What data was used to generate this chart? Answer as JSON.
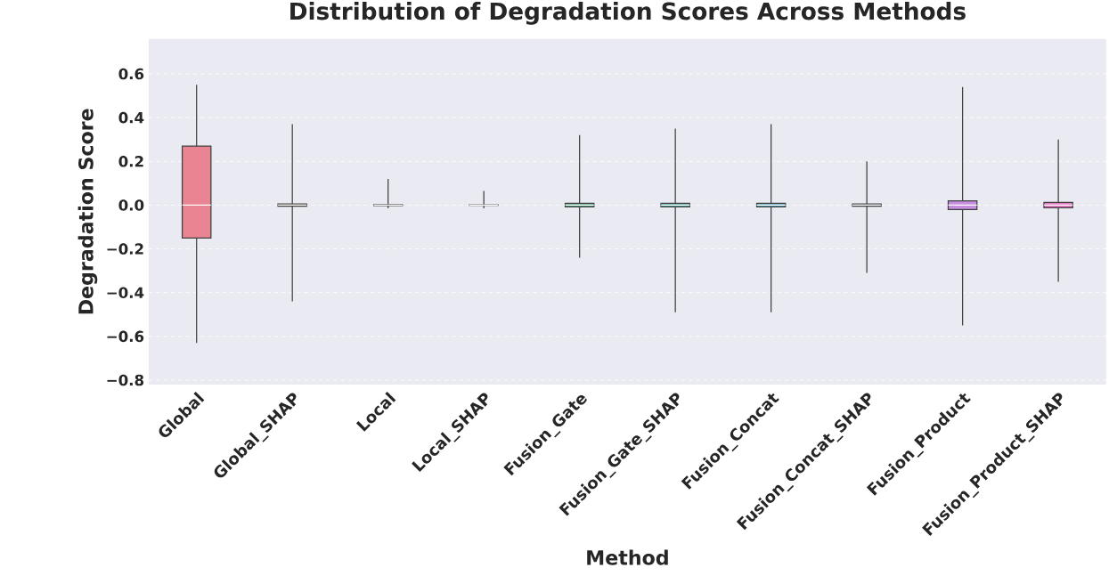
{
  "chart_data": {
    "type": "box",
    "title": "Distribution of Degradation Scores Across Methods",
    "xlabel": "Method",
    "ylabel": "Degradation Score",
    "categories": [
      "Global",
      "Global_SHAP",
      "Local",
      "Local_SHAP",
      "Fusion_Gate",
      "Fusion_Gate_SHAP",
      "Fusion_Concat",
      "Fusion_Concat_SHAP",
      "Fusion_Product",
      "Fusion_Product_SHAP"
    ],
    "colors": [
      "#e98592",
      "#c88a49",
      "#a59d50",
      "#7ea650",
      "#4aa57b",
      "#4ba39f",
      "#4ea1b8",
      "#7f9ee0",
      "#c68de0",
      "#e078c4"
    ],
    "boxes": [
      {
        "low": -0.63,
        "q1": -0.15,
        "median": 0.0,
        "q3": 0.27,
        "high": 0.55
      },
      {
        "low": -0.44,
        "q1": -0.005,
        "median": 0.0,
        "q3": 0.005,
        "high": 0.37
      },
      {
        "low": -0.015,
        "q1": -0.002,
        "median": 0.0,
        "q3": 0.002,
        "high": 0.12
      },
      {
        "low": -0.015,
        "q1": -0.001,
        "median": 0.0,
        "q3": 0.001,
        "high": 0.065
      },
      {
        "low": -0.24,
        "q1": -0.008,
        "median": 0.0,
        "q3": 0.008,
        "high": 0.32
      },
      {
        "low": -0.49,
        "q1": -0.008,
        "median": 0.0,
        "q3": 0.008,
        "high": 0.35
      },
      {
        "low": -0.49,
        "q1": -0.008,
        "median": 0.0,
        "q3": 0.008,
        "high": 0.37
      },
      {
        "low": -0.31,
        "q1": -0.005,
        "median": 0.0,
        "q3": 0.005,
        "high": 0.2
      },
      {
        "low": -0.55,
        "q1": -0.02,
        "median": 0.0,
        "q3": 0.02,
        "high": 0.54
      },
      {
        "low": -0.35,
        "q1": -0.012,
        "median": 0.0,
        "q3": 0.012,
        "high": 0.3
      }
    ],
    "ylim": [
      -0.82,
      0.76
    ],
    "yticks": [
      {
        "value": -0.8,
        "label": "−0.8"
      },
      {
        "value": -0.6,
        "label": "−0.6"
      },
      {
        "value": -0.4,
        "label": "−0.4"
      },
      {
        "value": -0.2,
        "label": "−0.2"
      },
      {
        "value": 0.0,
        "label": "0.0"
      },
      {
        "value": 0.2,
        "label": "0.2"
      },
      {
        "value": 0.4,
        "label": "0.4"
      },
      {
        "value": 0.6,
        "label": "0.6"
      }
    ],
    "grid": "y"
  }
}
